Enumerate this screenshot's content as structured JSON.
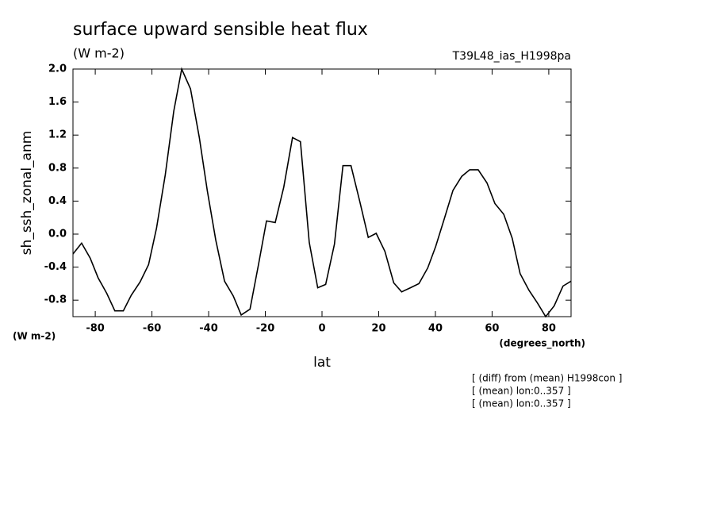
{
  "chart_data": {
    "type": "line",
    "title": "surface upward sensible heat flux",
    "units": "(W m-2)",
    "dataset": "T39L48_ias_H1998pa",
    "y_label": "sh_ssh_zonal_anm",
    "y_units": "(W m-2)",
    "x_label": "lat",
    "x_units": "(degrees_north)",
    "notes": [
      "[ (diff) from (mean) H1998con ]",
      "[ (mean) lon:0..357 ]",
      "[ (mean) lon:0..357 ]"
    ],
    "x": [
      -87.86,
      -84.8,
      -81.8,
      -79.0,
      -75.9,
      -73.1,
      -70.1,
      -67.3,
      -64.2,
      -61.2,
      -58.4,
      -55.3,
      -52.3,
      -49.5,
      -46.4,
      -43.3,
      -40.5,
      -37.5,
      -34.4,
      -31.3,
      -28.5,
      -25.4,
      -22.4,
      -19.6,
      -16.5,
      -13.5,
      -10.4,
      -7.6,
      -4.5,
      -1.5,
      1.3,
      4.4,
      7.4,
      10.2,
      13.3,
      16.3,
      19.1,
      22.2,
      25.3,
      28.1,
      31.2,
      34.2,
      37.3,
      40.1,
      43.1,
      46.2,
      49.3,
      52.1,
      55.1,
      58.2,
      61.0,
      64.1,
      67.1,
      69.9,
      73.0,
      76.1,
      78.9,
      81.9,
      85.0,
      87.86
    ],
    "series": [
      {
        "color": "#000000",
        "values": [
          -0.24,
          -0.11,
          -0.29,
          -0.53,
          -0.72,
          -0.93,
          -0.93,
          -0.74,
          -0.58,
          -0.37,
          0.07,
          0.72,
          1.49,
          2.0,
          1.76,
          1.17,
          0.53,
          -0.07,
          -0.57,
          -0.75,
          -0.98,
          -0.91,
          -0.37,
          0.16,
          0.14,
          0.57,
          1.17,
          1.12,
          -0.1,
          -0.65,
          -0.61,
          -0.12,
          0.83,
          0.83,
          0.4,
          -0.04,
          0.01,
          -0.21,
          -0.59,
          -0.7,
          -0.65,
          -0.6,
          -0.41,
          -0.15,
          0.18,
          0.53,
          0.7,
          0.78,
          0.78,
          0.62,
          0.37,
          0.24,
          -0.05,
          -0.48,
          -0.68,
          -0.84,
          -1.0,
          -0.87,
          -0.63,
          -0.57
        ]
      }
    ],
    "xlim": [
      -87.86,
      87.86
    ],
    "xticks": [
      -80,
      -60,
      -40,
      -20,
      0,
      20,
      40,
      60,
      80
    ],
    "ylim": [
      -1.0,
      2.0
    ],
    "yticks": [
      -0.8,
      -0.4,
      {
        "value": 0,
        "label": "0.0"
      },
      0.4,
      0.8,
      1.2,
      1.6,
      {
        "value": 2,
        "label": "2.0"
      }
    ]
  }
}
